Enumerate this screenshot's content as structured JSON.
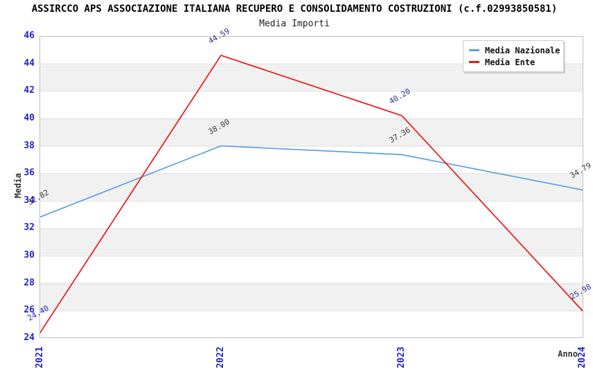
{
  "chart_data": {
    "type": "line",
    "title": "ASSIRCCO APS ASSOCIAZIONE ITALIANA RECUPERO E CONSOLIDAMENTO COSTRUZIONI (c.f.02993850581)",
    "subtitle": "Media Importi",
    "categories": [
      "2021",
      "2022",
      "2023",
      "2024"
    ],
    "series": [
      {
        "name": "Media Nazionale",
        "color": "#5E9FDE",
        "label_color": "#3A3A3A",
        "values": [
          32.82,
          38.0,
          37.36,
          34.79
        ]
      },
      {
        "name": "Media Ente",
        "color": "#EE1515",
        "label_color": "#2B2B9E",
        "values": [
          24.4,
          44.59,
          40.2,
          25.98
        ]
      }
    ],
    "xlabel": "Anno",
    "ylabel": "Media",
    "ylim": [
      24,
      46
    ],
    "yticks": [
      46,
      44,
      42,
      40,
      38,
      36,
      34,
      32,
      30,
      28,
      26,
      24
    ],
    "tick_color": "#2222CC",
    "band_colors": [
      "#FFFFFF",
      "#F1F1F1"
    ],
    "gridline_color": "#DEDEDE",
    "plot_border_color": "#BFBFBF",
    "legend_position": "top-right",
    "grid": "horizontal-bands"
  }
}
